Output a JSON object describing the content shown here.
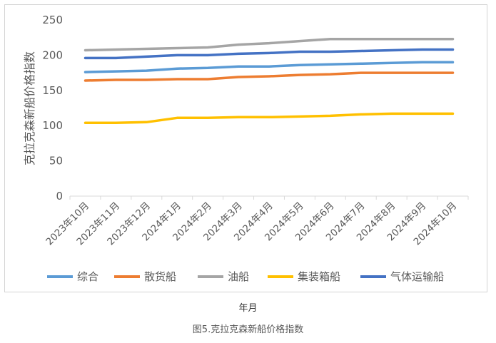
{
  "caption": "图5.克拉克森新船价格指数",
  "chart_data": {
    "type": "line",
    "ylabel": "克拉克森新船价格指数",
    "xlabel": "年月",
    "ylim": [
      0,
      250
    ],
    "yticks": [
      0,
      50,
      100,
      150,
      200,
      250
    ],
    "grid": false,
    "legend_position": "bottom",
    "categories": [
      "2023年10月",
      "2023年11月",
      "2023年12月",
      "2024年1月",
      "2024年2月",
      "2024年3月",
      "2024年4月",
      "2024年5月",
      "2024年6月",
      "2024年7月",
      "2024年8月",
      "2024年9月",
      "2024年10月"
    ],
    "series": [
      {
        "name": "综合",
        "color": "#5b9bd5",
        "values": [
          176,
          177,
          178,
          181,
          182,
          184,
          184,
          186,
          187,
          188,
          189,
          190,
          190
        ]
      },
      {
        "name": "散货船",
        "color": "#ed7d31",
        "values": [
          164,
          165,
          165,
          166,
          166,
          169,
          170,
          172,
          173,
          175,
          175,
          175,
          175
        ]
      },
      {
        "name": "油船",
        "color": "#a5a5a5",
        "values": [
          207,
          208,
          209,
          210,
          211,
          215,
          217,
          220,
          223,
          223,
          223,
          223,
          223
        ]
      },
      {
        "name": "集装箱船",
        "color": "#ffc000",
        "values": [
          104,
          104,
          105,
          111,
          111,
          112,
          112,
          113,
          114,
          116,
          117,
          117,
          117
        ]
      },
      {
        "name": "气体运输船",
        "color": "#4472c4",
        "values": [
          196,
          196,
          198,
          200,
          200,
          202,
          203,
          205,
          205,
          206,
          207,
          208,
          208
        ]
      }
    ]
  }
}
